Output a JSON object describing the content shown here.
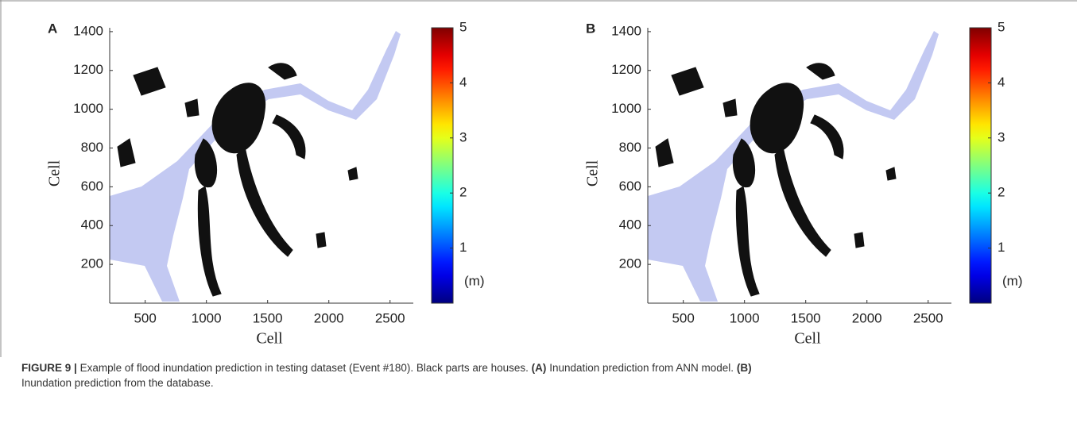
{
  "chart_data": [
    {
      "type": "image",
      "panel_label": "A",
      "xlabel": "Cell",
      "ylabel": "Cell",
      "xlim": [
        210,
        2690
      ],
      "xticks": [
        500,
        1000,
        1500,
        2000,
        2500
      ],
      "ylim": [
        0,
        1420
      ],
      "yticks": [
        200,
        400,
        600,
        800,
        1000,
        1200,
        1400
      ],
      "colorbar": {
        "colormap": "jet",
        "clim": [
          0,
          5
        ],
        "ticks": [
          1,
          2,
          3,
          4,
          5
        ],
        "label": "(m)"
      }
    },
    {
      "type": "image",
      "panel_label": "B",
      "xlabel": "Cell",
      "ylabel": "Cell",
      "xlim": [
        210,
        2690
      ],
      "xticks": [
        500,
        1000,
        1500,
        2000,
        2500
      ],
      "ylim": [
        0,
        1420
      ],
      "yticks": [
        200,
        400,
        600,
        800,
        1000,
        1200,
        1400
      ],
      "colorbar": {
        "colormap": "jet",
        "clim": [
          0,
          5
        ],
        "ticks": [
          1,
          2,
          3,
          4,
          5
        ],
        "label": "(m)"
      }
    }
  ],
  "caption": {
    "figure": "FIGURE 9 |",
    "text1": "Example of flood inundation prediction in testing dataset (Event #180). Black parts are houses.",
    "label_a": "(A)",
    "text_a": "Inundation prediction from ANN model.",
    "label_b": "(B)",
    "text_b": "Inundation prediction from the database."
  }
}
